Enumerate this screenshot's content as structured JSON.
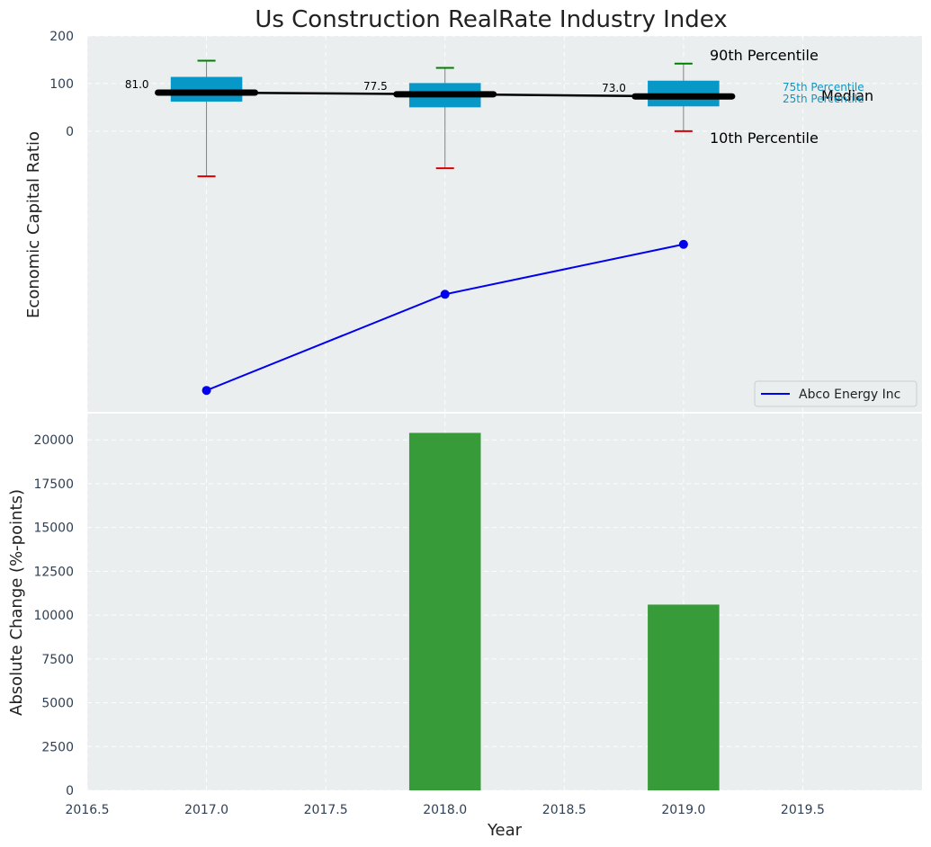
{
  "chart_data": [
    {
      "type": "box+line",
      "title": "Us Construction RealRate Industry Index",
      "ylabel": "Economic Capital Ratio",
      "yticks": [
        "200",
        "100",
        "0"
      ],
      "ylim": [
        -590,
        200
      ],
      "xlim": [
        2016.5,
        2020.0
      ],
      "x": [
        2017,
        2018,
        2019
      ],
      "boxes": [
        {
          "year": 2017,
          "p10": -95,
          "p25": 62,
          "median": 81,
          "p75": 114,
          "p90": 148,
          "median_label": "81.0"
        },
        {
          "year": 2018,
          "p10": -78,
          "p25": 50,
          "median": 77.5,
          "p75": 101,
          "p90": 133,
          "median_label": "77.5"
        },
        {
          "year": 2019,
          "p10": 0,
          "p25": 52,
          "median": 73,
          "p75": 106,
          "p90": 142,
          "median_label": "73.0"
        }
      ],
      "series": [
        {
          "name": "Abco Energy Inc",
          "color": "#0000ee",
          "values": [
            -545,
            -343,
            -238
          ]
        }
      ],
      "annotations": {
        "p90": "90th Percentile",
        "p75": "75th Percentile",
        "median": "Median",
        "p25": "25th Percentile",
        "p10": "10th Percentile"
      },
      "legend_position": "bottom-right"
    },
    {
      "type": "bar",
      "xlabel": "Year",
      "ylabel": "Absolute Change (%-points)",
      "x": [
        2018,
        2019
      ],
      "values": [
        20400,
        10600
      ],
      "color": "#2e962e",
      "ylim": [
        0,
        21500
      ],
      "xlim": [
        2016.5,
        2020.0
      ],
      "yticks": [
        "0",
        "2500",
        "5000",
        "7500",
        "10000",
        "12500",
        "15000",
        "17500",
        "20000"
      ],
      "xticks": [
        "2016.5",
        "2017.0",
        "2017.5",
        "2018.0",
        "2018.5",
        "2019.0",
        "2019.5"
      ]
    }
  ],
  "colors": {
    "panel_bg": "#eaeeef",
    "box": "#0898c8",
    "whisker_top": "#008000",
    "whisker_bottom": "#dd0000",
    "median": "#000000",
    "bar": "#2e962e",
    "line": "#0000ee"
  }
}
